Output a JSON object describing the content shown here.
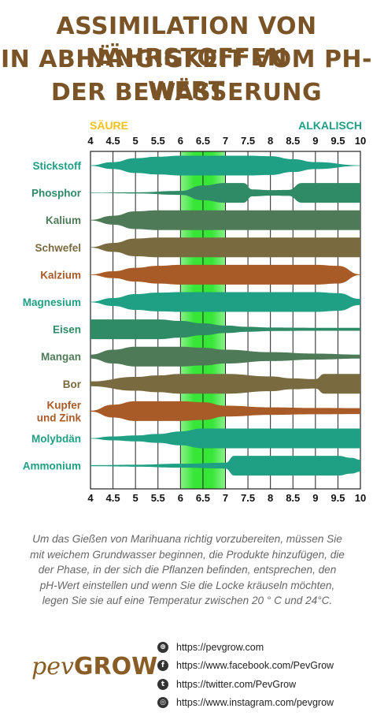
{
  "title_lines": [
    "ASSIMILATION VON NÄHRSTOFFEN",
    "IN ABHÄNGIGKEIT VOM PH-WERT",
    "DER BEWÄSSERUNG"
  ],
  "acid_label": "SÄURE",
  "alkaline_label": "ALKALISCH",
  "colors": {
    "title": "#7a5426",
    "teal": "#1f9f83",
    "green_dark": "#4f7a58",
    "olive": "#7a6a40",
    "rust": "#a85a27",
    "olive_brown": "#7a5c38",
    "optimal_band": "#40e040"
  },
  "chart_data": {
    "type": "area",
    "x_ticks": [
      "4",
      "4.5",
      "5",
      "5.5",
      "6",
      "6.5",
      "7",
      "7.5",
      "8",
      "8.5",
      "9",
      "9.5",
      "10"
    ],
    "xlim": [
      4,
      10
    ],
    "optimal_range": [
      6,
      7
    ],
    "series": [
      {
        "name": "Stickstoff",
        "color": "#1f9f83",
        "points": [
          [
            4,
            0.03
          ],
          [
            4.5,
            0.35
          ],
          [
            5,
            0.75
          ],
          [
            5.5,
            0.9
          ],
          [
            6,
            1
          ],
          [
            7,
            1
          ],
          [
            7.5,
            1
          ],
          [
            8,
            0.95
          ],
          [
            8.5,
            0.65
          ],
          [
            9,
            0.35
          ],
          [
            10,
            0.03
          ]
        ]
      },
      {
        "name": "Phosphor",
        "color": "#2f8a66",
        "points": [
          [
            4,
            0.02
          ],
          [
            5,
            0.06
          ],
          [
            6,
            0.2
          ],
          [
            6.5,
            0.75
          ],
          [
            7,
            1
          ],
          [
            7.4,
            1
          ],
          [
            7.6,
            0.35
          ],
          [
            8,
            0.28
          ],
          [
            8.4,
            0.3
          ],
          [
            8.7,
            1
          ],
          [
            10,
            1
          ]
        ]
      },
      {
        "name": "Kalium",
        "color": "#4f7a58",
        "points": [
          [
            4,
            0.03
          ],
          [
            4.5,
            0.45
          ],
          [
            5,
            0.9
          ],
          [
            5.5,
            1
          ],
          [
            10,
            1
          ]
        ]
      },
      {
        "name": "Schwefel",
        "color": "#7a6a40",
        "points": [
          [
            4,
            0.03
          ],
          [
            4.5,
            0.45
          ],
          [
            5,
            0.9
          ],
          [
            5.5,
            1
          ],
          [
            10,
            1
          ]
        ]
      },
      {
        "name": "Kalzium",
        "color": "#a85a27",
        "points": [
          [
            4,
            0.03
          ],
          [
            4.5,
            0.35
          ],
          [
            5,
            0.7
          ],
          [
            5.5,
            0.9
          ],
          [
            6,
            1
          ],
          [
            9,
            1
          ],
          [
            9.5,
            0.9
          ],
          [
            10,
            0.03
          ]
        ]
      },
      {
        "name": "Magnesium",
        "color": "#1f9f83",
        "points": [
          [
            4,
            0.03
          ],
          [
            4.5,
            0.4
          ],
          [
            5,
            0.8
          ],
          [
            5.5,
            0.95
          ],
          [
            6,
            1
          ],
          [
            9,
            1
          ],
          [
            9.5,
            0.9
          ],
          [
            10,
            0.3
          ]
        ]
      },
      {
        "name": "Eisen",
        "color": "#2f8a66",
        "points": [
          [
            4,
            1
          ],
          [
            5.5,
            1
          ],
          [
            6,
            0.85
          ],
          [
            6.5,
            0.6
          ],
          [
            7,
            0.38
          ],
          [
            7.5,
            0.25
          ],
          [
            8,
            0.18
          ],
          [
            9,
            0.15
          ],
          [
            10,
            0.15
          ]
        ]
      },
      {
        "name": "Mangan",
        "color": "#4f7a58",
        "points": [
          [
            4,
            0.2
          ],
          [
            4.5,
            0.7
          ],
          [
            5,
            1
          ],
          [
            6,
            1
          ],
          [
            6.5,
            0.9
          ],
          [
            7,
            0.7
          ],
          [
            8,
            0.45
          ],
          [
            9,
            0.3
          ],
          [
            10,
            0.2
          ]
        ]
      },
      {
        "name": "Bor",
        "color": "#7a6a40",
        "points": [
          [
            4,
            0.25
          ],
          [
            5,
            0.7
          ],
          [
            5.5,
            0.85
          ],
          [
            6,
            1
          ],
          [
            7,
            1
          ],
          [
            8,
            0.75
          ],
          [
            8.5,
            0.55
          ],
          [
            9,
            0.48
          ],
          [
            9.2,
            1
          ],
          [
            10,
            1
          ]
        ]
      },
      {
        "name": "Kupfer und Zink",
        "color": "#a85a27",
        "points": [
          [
            4,
            0.05
          ],
          [
            4.5,
            0.65
          ],
          [
            5,
            1
          ],
          [
            6,
            1
          ],
          [
            6.5,
            0.9
          ],
          [
            7,
            0.55
          ],
          [
            8,
            0.38
          ],
          [
            9,
            0.32
          ],
          [
            10,
            0.3
          ]
        ]
      },
      {
        "name": "Molybdän",
        "color": "#1f9f83",
        "points": [
          [
            4,
            0.03
          ],
          [
            4.5,
            0.2
          ],
          [
            5,
            0.3
          ],
          [
            5.5,
            0.45
          ],
          [
            6,
            0.7
          ],
          [
            6.5,
            1
          ],
          [
            10,
            1
          ]
        ]
      },
      {
        "name": "Ammonium",
        "color": "#1f9f83",
        "points": [
          [
            4,
            0.05
          ],
          [
            5,
            0.1
          ],
          [
            6,
            0.2
          ],
          [
            7,
            0.3
          ],
          [
            7.2,
            1
          ],
          [
            9.5,
            1
          ],
          [
            9.8,
            0.8
          ],
          [
            10,
            0.6
          ]
        ]
      }
    ]
  },
  "description": "Um das Gießen von Marihuana richtig vorzubereiten, müssen Sie mit weichem Grundwasser beginnen, die Produkte hinzufügen, die der Phase, in der sich die Pflanzen befinden, entsprechen, den pH-Wert einstellen und wenn Sie die Locke kräuseln möchten, legen Sie sie auf eine Temperatur zwischen 20 ° C und 24°C.",
  "logo": {
    "left": "pev",
    "right": "GROW"
  },
  "links": [
    {
      "icon": "globe-icon",
      "glyph": "⊕",
      "text": "https://pevgrow.com"
    },
    {
      "icon": "facebook-icon",
      "glyph": "f",
      "text": "https://www.facebook.com/PevGrow"
    },
    {
      "icon": "twitter-icon",
      "glyph": "t",
      "text": "https://twitter.com/PevGrow"
    },
    {
      "icon": "instagram-icon",
      "glyph": "◎",
      "text": "https://www.instagram.com/pevgrow"
    }
  ]
}
